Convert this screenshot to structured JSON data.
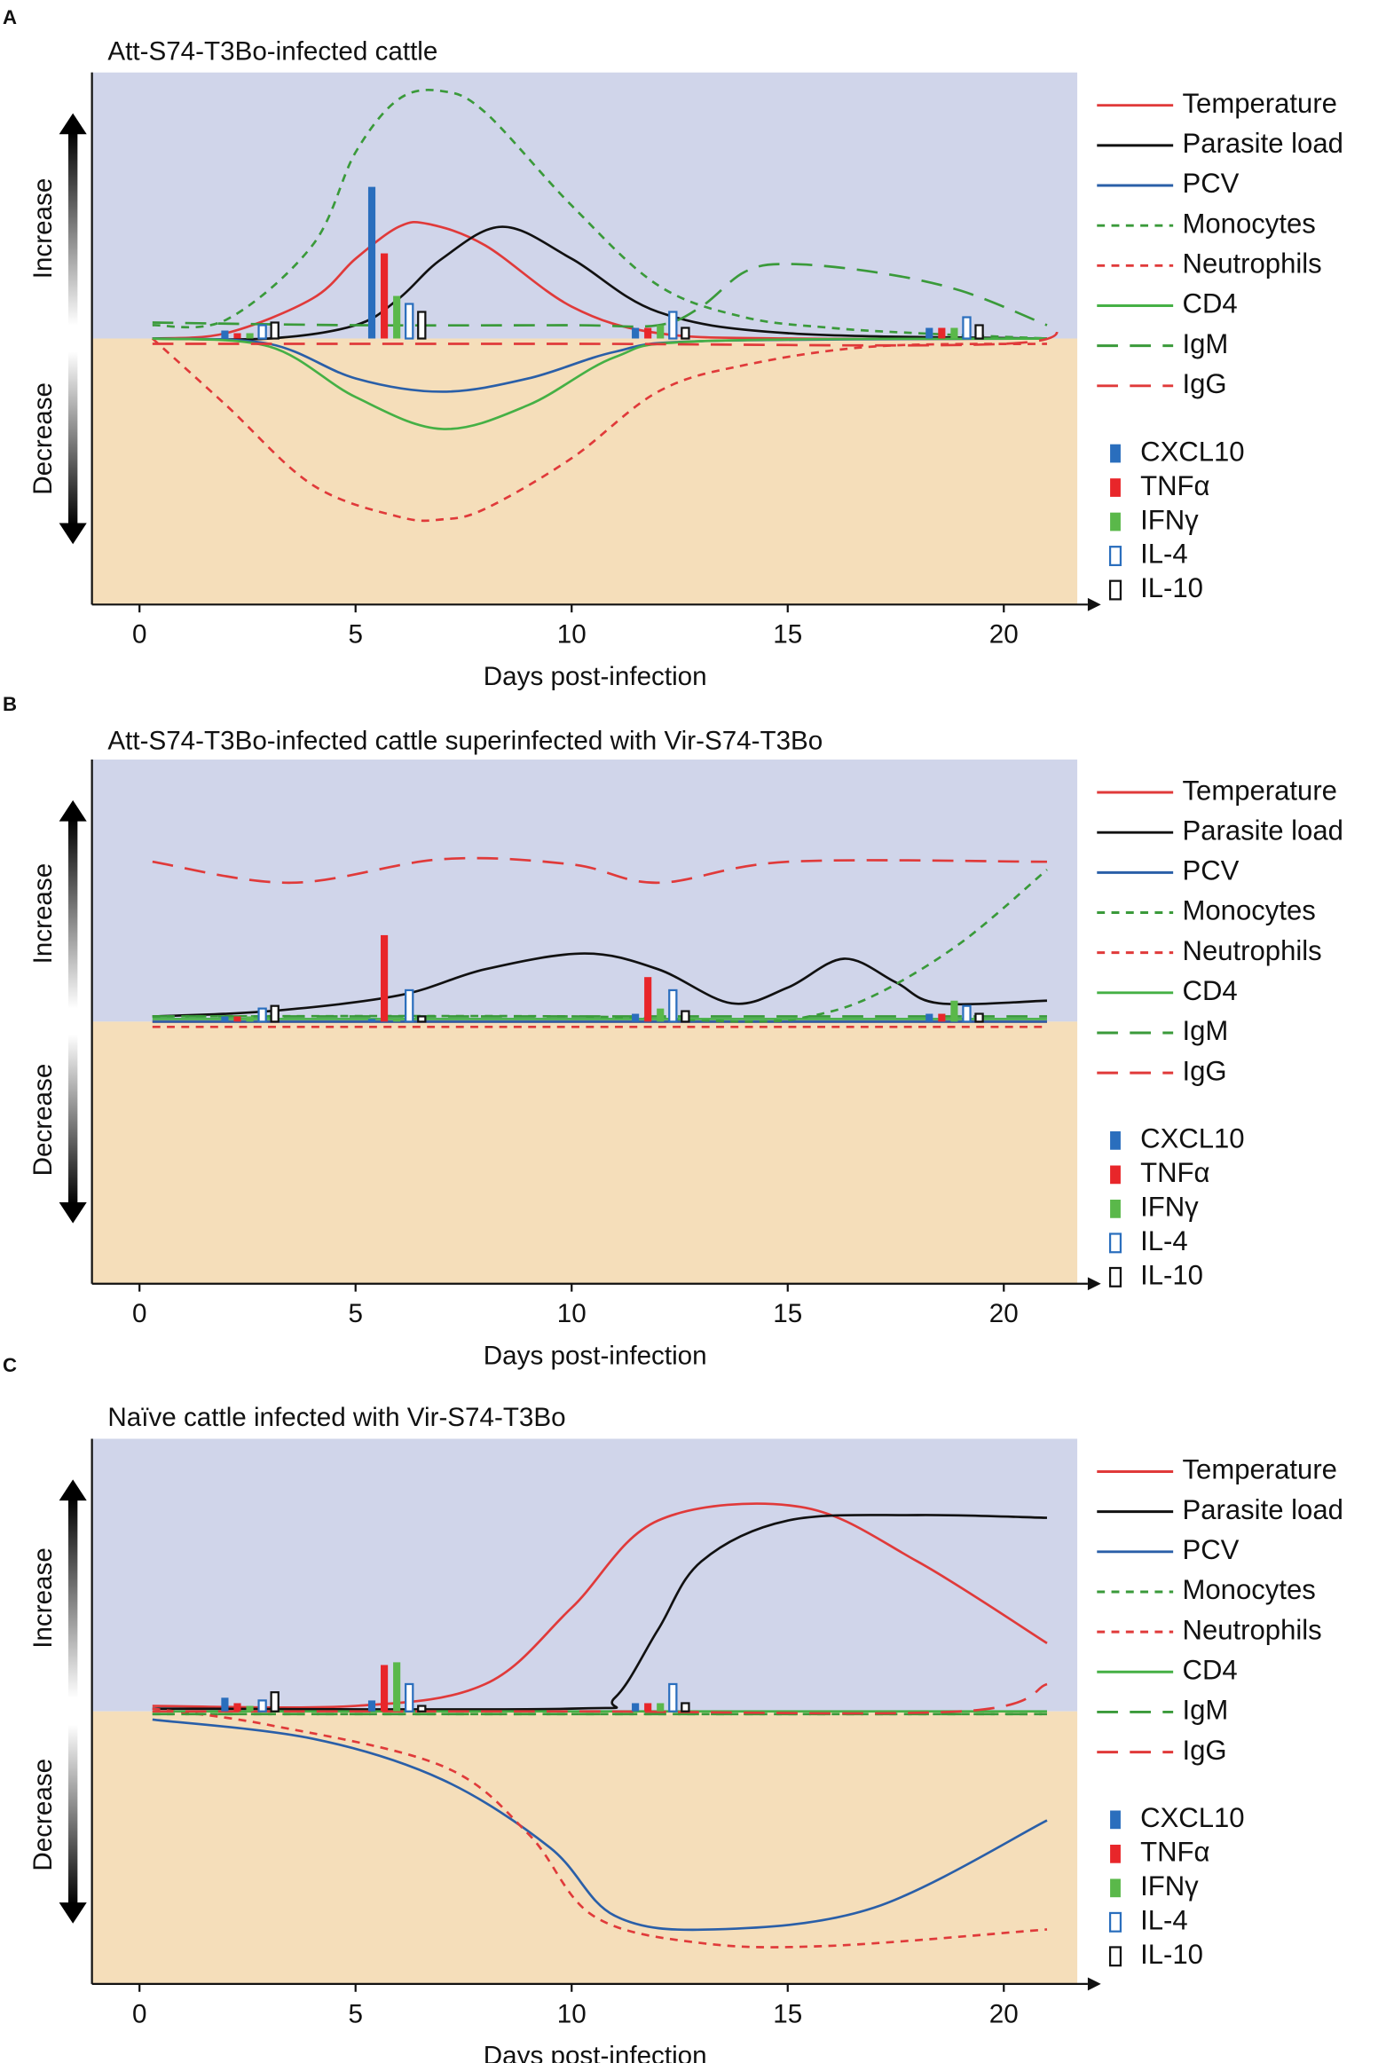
{
  "chart_data": [
    {
      "type": "line",
      "panel": "A",
      "title": "Att-S74-T3Bo-infected cattle",
      "xlabel": "Days post-infection",
      "ylabel_up": "Increase",
      "ylabel_down": "Decrease",
      "xlim": [
        -1.1,
        21.7
      ],
      "ylim": [
        -1,
        1
      ],
      "xticks": [
        0,
        5,
        10,
        15,
        20
      ],
      "series": [
        {
          "name": "Temperature",
          "type": "line",
          "color": "#e03a3a",
          "style": "solid",
          "x": [
            0.3,
            2,
            4,
            5,
            6,
            6.7,
            8,
            10,
            12,
            15,
            21
          ],
          "values": [
            0,
            0.02,
            0.15,
            0.3,
            0.42,
            0.43,
            0.35,
            0.12,
            0.02,
            0,
            0
          ]
        },
        {
          "name": "Parasite load",
          "type": "line",
          "color": "#111111",
          "style": "solid",
          "x": [
            0.3,
            3,
            5,
            6,
            7,
            8.4,
            10,
            12,
            15,
            21
          ],
          "values": [
            0,
            0,
            0.05,
            0.15,
            0.3,
            0.42,
            0.3,
            0.1,
            0.02,
            0
          ]
        },
        {
          "name": "PCV",
          "type": "line",
          "color": "#2a5fa8",
          "style": "solid",
          "x": [
            0.3,
            3,
            5,
            7,
            9,
            11,
            13,
            21
          ],
          "values": [
            0,
            -0.02,
            -0.15,
            -0.2,
            -0.15,
            -0.05,
            -0.01,
            0
          ]
        },
        {
          "name": "Monocytes",
          "type": "line",
          "color": "#3a9a3a",
          "style": "short-dash",
          "x": [
            0.3,
            2,
            4,
            5,
            6,
            7,
            8,
            10,
            12,
            14,
            16,
            18,
            21
          ],
          "values": [
            0.05,
            0.07,
            0.35,
            0.7,
            0.9,
            0.93,
            0.85,
            0.5,
            0.2,
            0.08,
            0.04,
            0.02,
            0
          ]
        },
        {
          "name": "Neutrophils",
          "type": "line",
          "color": "#e03a3a",
          "style": "short-dash",
          "x": [
            0.3,
            2,
            4,
            6,
            7,
            8,
            10,
            12,
            14,
            17,
            21
          ],
          "values": [
            0,
            -0.25,
            -0.55,
            -0.67,
            -0.68,
            -0.64,
            -0.45,
            -0.2,
            -0.1,
            -0.03,
            -0.02
          ]
        },
        {
          "name": "CD4",
          "type": "line",
          "color": "#45b045",
          "style": "solid",
          "x": [
            0.3,
            3,
            5,
            7,
            9,
            11,
            13,
            21
          ],
          "values": [
            0,
            -0.03,
            -0.22,
            -0.34,
            -0.25,
            -0.07,
            -0.01,
            0
          ]
        },
        {
          "name": "IgM",
          "type": "line",
          "color": "#3a9a3a",
          "style": "long-dash",
          "x": [
            0.3,
            5,
            10,
            12,
            13,
            14,
            15,
            17,
            19,
            21
          ],
          "values": [
            0.06,
            0.05,
            0.05,
            0.05,
            0.12,
            0.25,
            0.28,
            0.25,
            0.18,
            0.05
          ]
        },
        {
          "name": "IgG",
          "type": "line",
          "color": "#e03a3a",
          "style": "long-dash",
          "x": [
            0.3,
            10,
            20,
            21.2
          ],
          "values": [
            -0.02,
            -0.02,
            -0.02,
            0.06
          ]
        },
        {
          "name": "CXCL10",
          "type": "bar",
          "color": "#2a6ebd",
          "style": "filled",
          "x": [
            2.5,
            5.9,
            12,
            18.8
          ],
          "values": [
            0.03,
            0.57,
            0.04,
            0.04
          ]
        },
        {
          "name": "TNFα",
          "type": "bar",
          "color": "#e8262a",
          "style": "filled",
          "x": [
            2.5,
            5.9,
            12,
            18.8
          ],
          "values": [
            0.02,
            0.32,
            0.04,
            0.04
          ]
        },
        {
          "name": "IFNγ",
          "type": "bar",
          "color": "#5ab84a",
          "style": "filled",
          "x": [
            2.5,
            5.9,
            12,
            18.8
          ],
          "values": [
            0.02,
            0.16,
            0.05,
            0.04
          ]
        },
        {
          "name": "IL-4",
          "type": "bar",
          "color": "#2a6ebd",
          "style": "outline",
          "x": [
            2.5,
            5.9,
            12,
            18.8
          ],
          "values": [
            0.05,
            0.13,
            0.1,
            0.08
          ]
        },
        {
          "name": "IL-10",
          "type": "bar",
          "color": "#111111",
          "style": "outline",
          "x": [
            2.5,
            5.9,
            12,
            18.8
          ],
          "values": [
            0.06,
            0.1,
            0.04,
            0.05
          ]
        }
      ]
    },
    {
      "type": "line",
      "panel": "B",
      "title": "Att-S74-T3Bo-infected cattle superinfected with Vir-S74-T3Bo",
      "xlabel": "Days post-infection",
      "ylabel_up": "Increase",
      "ylabel_down": "Decrease",
      "xlim": [
        -1.1,
        21.7
      ],
      "ylim": [
        -1,
        1
      ],
      "xticks": [
        0,
        5,
        10,
        15,
        20
      ],
      "series": [
        {
          "name": "Temperature",
          "type": "line",
          "color": "#e03a3a",
          "style": "solid",
          "x": [
            0.3,
            21
          ],
          "values": [
            0,
            0
          ]
        },
        {
          "name": "Parasite load",
          "type": "line",
          "color": "#111111",
          "style": "solid",
          "x": [
            0.3,
            3,
            6,
            8,
            10.3,
            12,
            13.7,
            15,
            16.3,
            17.5,
            18.5,
            21
          ],
          "values": [
            0.02,
            0.04,
            0.1,
            0.2,
            0.26,
            0.2,
            0.07,
            0.13,
            0.24,
            0.15,
            0.07,
            0.08
          ]
        },
        {
          "name": "PCV",
          "type": "line",
          "color": "#2a5fa8",
          "style": "solid",
          "x": [
            0.3,
            21
          ],
          "values": [
            0,
            0
          ]
        },
        {
          "name": "Monocytes",
          "type": "line",
          "color": "#3a9a3a",
          "style": "short-dash",
          "x": [
            0.3,
            10,
            14,
            15.5,
            17,
            19,
            21
          ],
          "values": [
            0.02,
            0.02,
            0,
            0.02,
            0.1,
            0.3,
            0.58
          ]
        },
        {
          "name": "Neutrophils",
          "type": "line",
          "color": "#e03a3a",
          "style": "short-dash",
          "x": [
            0.3,
            21
          ],
          "values": [
            -0.02,
            -0.02
          ]
        },
        {
          "name": "CD4",
          "type": "line",
          "color": "#45b045",
          "style": "solid",
          "x": [
            0.3,
            21
          ],
          "values": [
            0.01,
            0.01
          ]
        },
        {
          "name": "IgM",
          "type": "line",
          "color": "#3a9a3a",
          "style": "long-dash",
          "x": [
            0.3,
            10,
            21
          ],
          "values": [
            0.02,
            0.02,
            0.02
          ]
        },
        {
          "name": "IgG",
          "type": "line",
          "color": "#e03a3a",
          "style": "long-dash",
          "x": [
            0.3,
            3.5,
            7,
            10,
            12,
            15,
            21
          ],
          "values": [
            0.61,
            0.53,
            0.62,
            0.6,
            0.53,
            0.61,
            0.61
          ]
        },
        {
          "name": "CXCL10",
          "type": "bar",
          "color": "#2a6ebd",
          "style": "filled",
          "x": [
            2.5,
            5.9,
            12,
            18.8
          ],
          "values": [
            0.02,
            0.01,
            0.03,
            0.03
          ]
        },
        {
          "name": "TNFα",
          "type": "bar",
          "color": "#e8262a",
          "style": "filled",
          "x": [
            2.5,
            5.9,
            12,
            18.8
          ],
          "values": [
            0.02,
            0.33,
            0.17,
            0.03
          ]
        },
        {
          "name": "IFNγ",
          "type": "bar",
          "color": "#5ab84a",
          "style": "filled",
          "x": [
            2.5,
            5.9,
            12,
            18.8
          ],
          "values": [
            0.02,
            0.01,
            0.05,
            0.08
          ]
        },
        {
          "name": "IL-4",
          "type": "bar",
          "color": "#2a6ebd",
          "style": "outline",
          "x": [
            2.5,
            5.9,
            12,
            18.8
          ],
          "values": [
            0.05,
            0.12,
            0.12,
            0.06
          ]
        },
        {
          "name": "IL-10",
          "type": "bar",
          "color": "#111111",
          "style": "outline",
          "x": [
            2.5,
            5.9,
            12,
            18.8
          ],
          "values": [
            0.06,
            0.02,
            0.04,
            0.03
          ]
        }
      ]
    },
    {
      "type": "line",
      "panel": "C",
      "title": "Naïve cattle infected with Vir-S74-T3Bo",
      "xlabel": "Days post-infection",
      "ylabel_up": "Increase",
      "ylabel_down": "Decrease",
      "xlim": [
        -1.1,
        21.7
      ],
      "ylim": [
        -1,
        1
      ],
      "xticks": [
        0,
        5,
        10,
        15,
        20
      ],
      "series": [
        {
          "name": "Temperature",
          "type": "line",
          "color": "#e03a3a",
          "style": "solid",
          "x": [
            0.3,
            5,
            8,
            10,
            12,
            15.3,
            18,
            21
          ],
          "values": [
            0.02,
            0.02,
            0.1,
            0.38,
            0.7,
            0.75,
            0.55,
            0.25
          ]
        },
        {
          "name": "Parasite load",
          "type": "line",
          "color": "#111111",
          "style": "solid",
          "x": [
            0.3,
            10,
            11,
            12,
            13,
            15,
            18,
            21
          ],
          "values": [
            0.01,
            0.01,
            0.05,
            0.3,
            0.55,
            0.7,
            0.72,
            0.71
          ]
        },
        {
          "name": "PCV",
          "type": "line",
          "color": "#2a5fa8",
          "style": "solid",
          "x": [
            0.3,
            4,
            7,
            9.5,
            11,
            13.3,
            17,
            21
          ],
          "values": [
            -0.03,
            -0.1,
            -0.25,
            -0.5,
            -0.75,
            -0.8,
            -0.72,
            -0.4
          ]
        },
        {
          "name": "Monocytes",
          "type": "line",
          "color": "#3a9a3a",
          "style": "short-dash",
          "x": [
            0.3,
            21
          ],
          "values": [
            -0.01,
            -0.01
          ]
        },
        {
          "name": "Neutrophils",
          "type": "line",
          "color": "#e03a3a",
          "style": "short-dash",
          "x": [
            0.3,
            3,
            7,
            9,
            10.5,
            13,
            16,
            21
          ],
          "values": [
            0.01,
            -0.05,
            -0.2,
            -0.45,
            -0.75,
            -0.85,
            -0.86,
            -0.8
          ]
        },
        {
          "name": "CD4",
          "type": "line",
          "color": "#45b045",
          "style": "solid",
          "x": [
            0.3,
            21
          ],
          "values": [
            0,
            0
          ]
        },
        {
          "name": "IgM",
          "type": "line",
          "color": "#3a9a3a",
          "style": "long-dash",
          "x": [
            0.3,
            21
          ],
          "values": [
            -0.01,
            -0.01
          ]
        },
        {
          "name": "IgG",
          "type": "line",
          "color": "#e03a3a",
          "style": "long-dash",
          "x": [
            0.3,
            10,
            19,
            21
          ],
          "values": [
            0,
            0,
            0,
            0.1
          ]
        },
        {
          "name": "CXCL10",
          "type": "bar",
          "color": "#2a6ebd",
          "style": "filled",
          "x": [
            2.5,
            5.9,
            12
          ],
          "values": [
            0.05,
            0.04,
            0.03
          ]
        },
        {
          "name": "TNFα",
          "type": "bar",
          "color": "#e8262a",
          "style": "filled",
          "x": [
            2.5,
            5.9,
            12
          ],
          "values": [
            0.03,
            0.17,
            0.03
          ]
        },
        {
          "name": "IFNγ",
          "type": "bar",
          "color": "#5ab84a",
          "style": "filled",
          "x": [
            2.5,
            5.9,
            12
          ],
          "values": [
            0.02,
            0.18,
            0.03
          ]
        },
        {
          "name": "IL-4",
          "type": "bar",
          "color": "#2a6ebd",
          "style": "outline",
          "x": [
            2.5,
            5.9,
            12
          ],
          "values": [
            0.04,
            0.1,
            0.1
          ]
        },
        {
          "name": "IL-10",
          "type": "bar",
          "color": "#111111",
          "style": "outline",
          "x": [
            2.5,
            5.9,
            12
          ],
          "values": [
            0.07,
            0.02,
            0.03
          ]
        }
      ]
    }
  ]
}
